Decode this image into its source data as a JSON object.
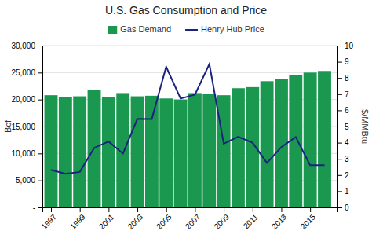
{
  "chart_data": {
    "type": "bar",
    "title": "U.S. Gas Consumption and Price",
    "x": [
      1997,
      1998,
      1999,
      2000,
      2001,
      2002,
      2003,
      2004,
      2005,
      2006,
      2007,
      2008,
      2009,
      2010,
      2011,
      2012,
      2013,
      2014,
      2015,
      2016
    ],
    "xlim": [
      1996.4,
      2016.9
    ],
    "xticks": [
      1997,
      1999,
      2001,
      2003,
      2005,
      2007,
      2009,
      2011,
      2013,
      2015
    ],
    "ylabel": "Bcf",
    "ylim": [
      0,
      30000
    ],
    "yticks": [
      {
        "value": 0,
        "label": "-"
      },
      {
        "value": 5000,
        "label": "5,000"
      },
      {
        "value": 10000,
        "label": "10,000"
      },
      {
        "value": 15000,
        "label": "15,000"
      },
      {
        "value": 20000,
        "label": "20,000"
      },
      {
        "value": 25000,
        "label": "25,000"
      },
      {
        "value": 30000,
        "label": "30,000"
      }
    ],
    "y2label": "$/MMBtu",
    "y2lim": [
      0,
      10
    ],
    "y2ticks": [
      0,
      1,
      2,
      3,
      4,
      5,
      6,
      7,
      8,
      9,
      10
    ],
    "grid": true,
    "legend": "top",
    "series": [
      {
        "name": "Gas Demand",
        "type": "bar",
        "color": "#1a9850",
        "values": [
          20800,
          20400,
          20600,
          21700,
          20500,
          21200,
          20600,
          20700,
          20200,
          20000,
          21200,
          21100,
          20800,
          22100,
          22300,
          23400,
          23800,
          24500,
          25000,
          25300
        ]
      },
      {
        "name": "Henry Hub Price",
        "type": "line",
        "color": "#1a237e",
        "axis": "y2",
        "values": [
          2.32,
          2.08,
          2.19,
          3.68,
          4.07,
          3.33,
          5.47,
          5.46,
          8.69,
          6.73,
          6.97,
          8.86,
          3.94,
          4.37,
          4.0,
          2.75,
          3.73,
          4.35,
          2.61,
          2.61
        ]
      }
    ]
  }
}
